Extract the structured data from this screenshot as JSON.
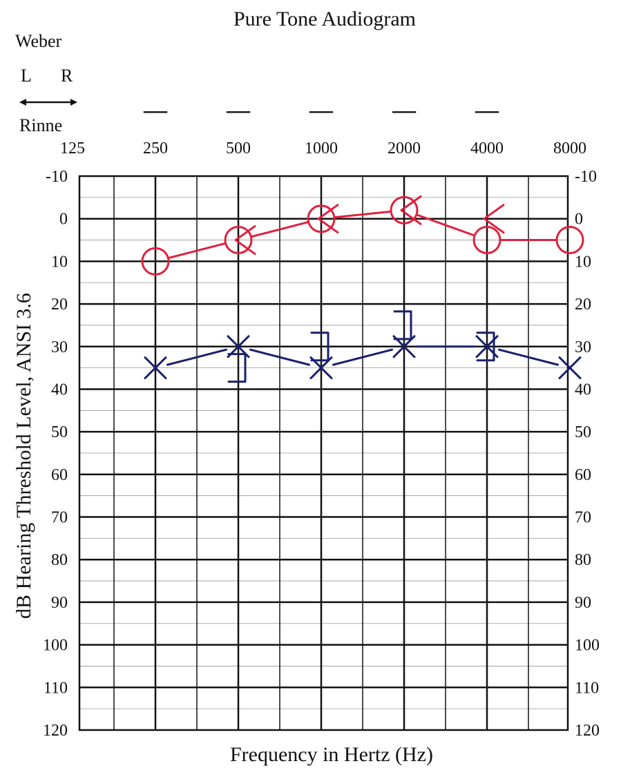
{
  "chart_data": {
    "type": "scatter",
    "title": "Pure Tone Audiogram",
    "xlabel": "Frequency in Hertz (Hz)",
    "ylabel": "dB Hearing Threshold Level, ANSI 3.6",
    "x_scale": "log2",
    "x_ticks": [
      "125",
      "250",
      "500",
      "1000",
      "2000",
      "4000",
      "8000"
    ],
    "x_values": [
      125,
      250,
      500,
      1000,
      2000,
      4000,
      8000
    ],
    "y_ticks": [
      "-10",
      "0",
      "10",
      "20",
      "30",
      "40",
      "50",
      "60",
      "70",
      "80",
      "90",
      "100",
      "110",
      "120"
    ],
    "ylim": [
      -10,
      120
    ],
    "y_inverted": true,
    "grid": true,
    "weber": {
      "label": "Weber",
      "left_label": "L",
      "right_label": "R",
      "marks": [
        {
          "frequency": 250,
          "symbol": "—"
        },
        {
          "frequency": 500,
          "symbol": "—"
        },
        {
          "frequency": 1000,
          "symbol": "—"
        },
        {
          "frequency": 2000,
          "symbol": "—"
        },
        {
          "frequency": 4000,
          "symbol": "—"
        }
      ]
    },
    "rinne": {
      "label": "Rinne"
    },
    "series": [
      {
        "color": "#e0203c",
        "marker": "circle",
        "x": [
          250,
          500,
          1000,
          2000,
          4000,
          8000
        ],
        "y": [
          10,
          5,
          0,
          -2,
          5,
          5
        ]
      },
      {
        "color": "#e0203c",
        "marker": "less-than",
        "x": [
          500,
          1000,
          2000,
          4000
        ],
        "y": [
          5,
          0,
          -2,
          0
        ]
      },
      {
        "color": "#1a1f6e",
        "marker": "x",
        "x": [
          250,
          500,
          1000,
          2000,
          4000,
          8000
        ],
        "y": [
          35,
          30,
          35,
          30,
          30,
          35
        ]
      },
      {
        "color": "#1a1f6e",
        "marker": "bracket-right",
        "x": [
          500,
          1000,
          2000,
          4000
        ],
        "y": [
          35,
          30,
          25,
          30
        ]
      }
    ]
  }
}
